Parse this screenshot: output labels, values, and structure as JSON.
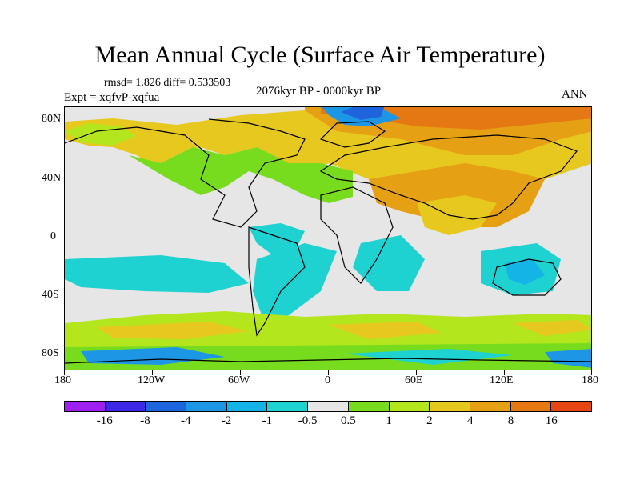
{
  "title": "Mean Annual Cycle (Surface Air Temperature)",
  "stats": "rmsd= 1.826  diff= 0.533503",
  "expt": "Expt = xqfvP-xqfua",
  "period": "2076kyr BP - 0000kyr BP",
  "season": "ANN",
  "lat_labels": [
    "80N",
    "40N",
    "0",
    "40S",
    "80S"
  ],
  "lon_labels": [
    "180",
    "120W",
    "60W",
    "0",
    "60E",
    "120E",
    "180"
  ],
  "colorbar": {
    "colors": [
      "#a020f0",
      "#3c28e6",
      "#1e64dc",
      "#1e96e6",
      "#14b4e6",
      "#1ed2d2",
      "#e6e6e6",
      "#78dc1e",
      "#b4e61e",
      "#e6c81e",
      "#e6a014",
      "#e67814",
      "#e64614"
    ],
    "labels": [
      "-16",
      "-8",
      "-4",
      "-2",
      "-1",
      "-0.5",
      "0.5",
      "1",
      "2",
      "4",
      "8",
      "16"
    ]
  }
}
